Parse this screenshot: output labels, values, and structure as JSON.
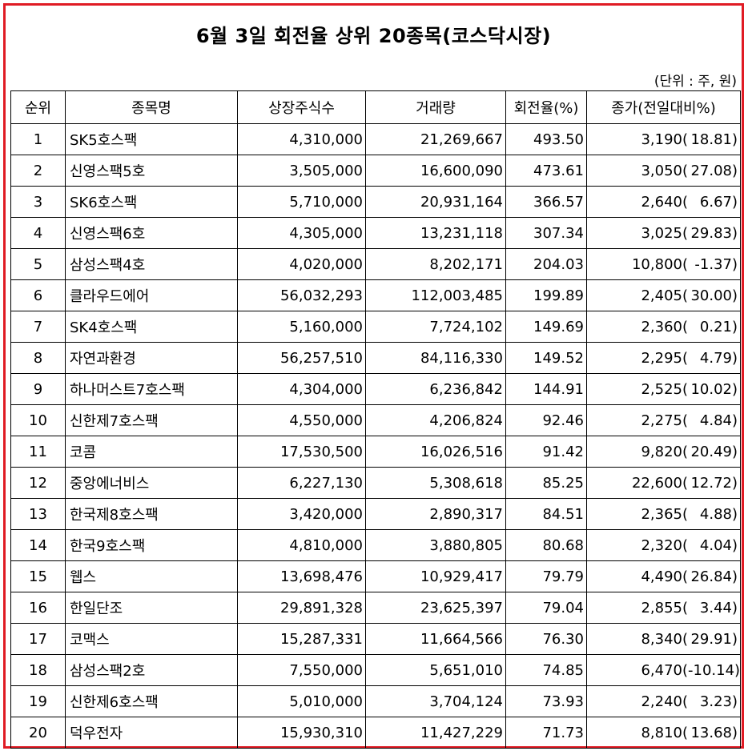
{
  "title": "6월 3일 회전율 상위 20종목(코스닥시장)",
  "unit_note": "(단위 : 주, 원)",
  "headers": {
    "rank": "순위",
    "name": "종목명",
    "listed": "상장주식수",
    "volume": "거래량",
    "turnover": "회전율(%)",
    "close": "종가(전일대비%)"
  },
  "rows": [
    {
      "rank": "1",
      "name": "SK5호스팩",
      "listed": "4,310,000",
      "volume": "21,269,667",
      "turnover": "493.50",
      "price": "3,190(",
      "change": "18.81)"
    },
    {
      "rank": "2",
      "name": "신영스팩5호",
      "listed": "3,505,000",
      "volume": "16,600,090",
      "turnover": "473.61",
      "price": "3,050(",
      "change": "27.08)"
    },
    {
      "rank": "3",
      "name": "SK6호스팩",
      "listed": "5,710,000",
      "volume": "20,931,164",
      "turnover": "366.57",
      "price": "2,640(",
      "change": "6.67)"
    },
    {
      "rank": "4",
      "name": "신영스팩6호",
      "listed": "4,305,000",
      "volume": "13,231,118",
      "turnover": "307.34",
      "price": "3,025(",
      "change": "29.83)"
    },
    {
      "rank": "5",
      "name": "삼성스팩4호",
      "listed": "4,020,000",
      "volume": "8,202,171",
      "turnover": "204.03",
      "price": "10,800(",
      "change": "-1.37)"
    },
    {
      "rank": "6",
      "name": "클라우드에어",
      "listed": "56,032,293",
      "volume": "112,003,485",
      "turnover": "199.89",
      "price": "2,405(",
      "change": "30.00)"
    },
    {
      "rank": "7",
      "name": "SK4호스팩",
      "listed": "5,160,000",
      "volume": "7,724,102",
      "turnover": "149.69",
      "price": "2,360(",
      "change": "0.21)"
    },
    {
      "rank": "8",
      "name": "자연과환경",
      "listed": "56,257,510",
      "volume": "84,116,330",
      "turnover": "149.52",
      "price": "2,295(",
      "change": "4.79)"
    },
    {
      "rank": "9",
      "name": "하나머스트7호스팩",
      "listed": "4,304,000",
      "volume": "6,236,842",
      "turnover": "144.91",
      "price": "2,525(",
      "change": "10.02)"
    },
    {
      "rank": "10",
      "name": "신한제7호스팩",
      "listed": "4,550,000",
      "volume": "4,206,824",
      "turnover": "92.46",
      "price": "2,275(",
      "change": "4.84)"
    },
    {
      "rank": "11",
      "name": "코콤",
      "listed": "17,530,500",
      "volume": "16,026,516",
      "turnover": "91.42",
      "price": "9,820(",
      "change": "20.49)"
    },
    {
      "rank": "12",
      "name": "중앙에너비스",
      "listed": "6,227,130",
      "volume": "5,308,618",
      "turnover": "85.25",
      "price": "22,600(",
      "change": "12.72)"
    },
    {
      "rank": "13",
      "name": "한국제8호스팩",
      "listed": "3,420,000",
      "volume": "2,890,317",
      "turnover": "84.51",
      "price": "2,365(",
      "change": "4.88)"
    },
    {
      "rank": "14",
      "name": "한국9호스팩",
      "listed": "4,810,000",
      "volume": "3,880,805",
      "turnover": "80.68",
      "price": "2,320(",
      "change": "4.04)"
    },
    {
      "rank": "15",
      "name": "웹스",
      "listed": "13,698,476",
      "volume": "10,929,417",
      "turnover": "79.79",
      "price": "4,490(",
      "change": "26.84)"
    },
    {
      "rank": "16",
      "name": "한일단조",
      "listed": "29,891,328",
      "volume": "23,625,397",
      "turnover": "79.04",
      "price": "2,855(",
      "change": "3.44)"
    },
    {
      "rank": "17",
      "name": "코맥스",
      "listed": "15,287,331",
      "volume": "11,664,566",
      "turnover": "76.30",
      "price": "8,340(",
      "change": "29.91)"
    },
    {
      "rank": "18",
      "name": "삼성스팩2호",
      "listed": "7,550,000",
      "volume": "5,651,010",
      "turnover": "74.85",
      "price": "6,470(",
      "change": "-10.14)"
    },
    {
      "rank": "19",
      "name": "신한제6호스팩",
      "listed": "5,010,000",
      "volume": "3,704,124",
      "turnover": "73.93",
      "price": "2,240(",
      "change": "3.23)"
    },
    {
      "rank": "20",
      "name": "덕우전자",
      "listed": "15,930,310",
      "volume": "11,427,229",
      "turnover": "71.73",
      "price": "8,810(",
      "change": "13.68)"
    }
  ],
  "colors": {
    "border_accent": "#e01b24"
  }
}
